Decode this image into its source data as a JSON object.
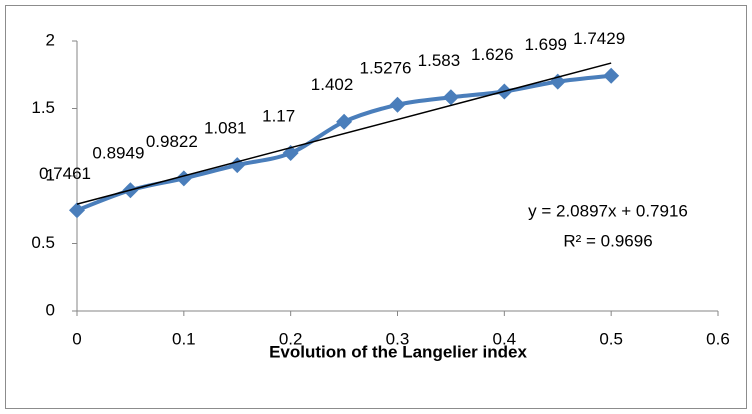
{
  "chart_data": {
    "type": "line",
    "x": [
      0,
      0.05,
      0.1,
      0.15,
      0.2,
      0.25,
      0.3,
      0.35,
      0.4,
      0.45,
      0.5
    ],
    "series": [
      {
        "color": "#4a7ebb",
        "values": [
          0.7461,
          0.8949,
          0.9822,
          1.081,
          1.17,
          1.402,
          1.5276,
          1.583,
          1.626,
          1.699,
          1.7429
        ]
      }
    ],
    "xlim": [
      0,
      0.6
    ],
    "xticks": [
      0,
      0.1,
      0.2,
      0.3,
      0.4,
      0.5,
      0.6
    ],
    "ylim": [
      0,
      2
    ],
    "yticks": [
      0,
      0.5,
      1,
      1.5,
      2
    ],
    "xlabel": "Evolution of the Langelier index",
    "grid": false,
    "trendline": {
      "slope": 2.0897,
      "intercept": 0.7916,
      "color": "#000000"
    },
    "annotations": [
      "y = 2.0897x + 0.7916",
      "R² = 0.9696"
    ]
  }
}
